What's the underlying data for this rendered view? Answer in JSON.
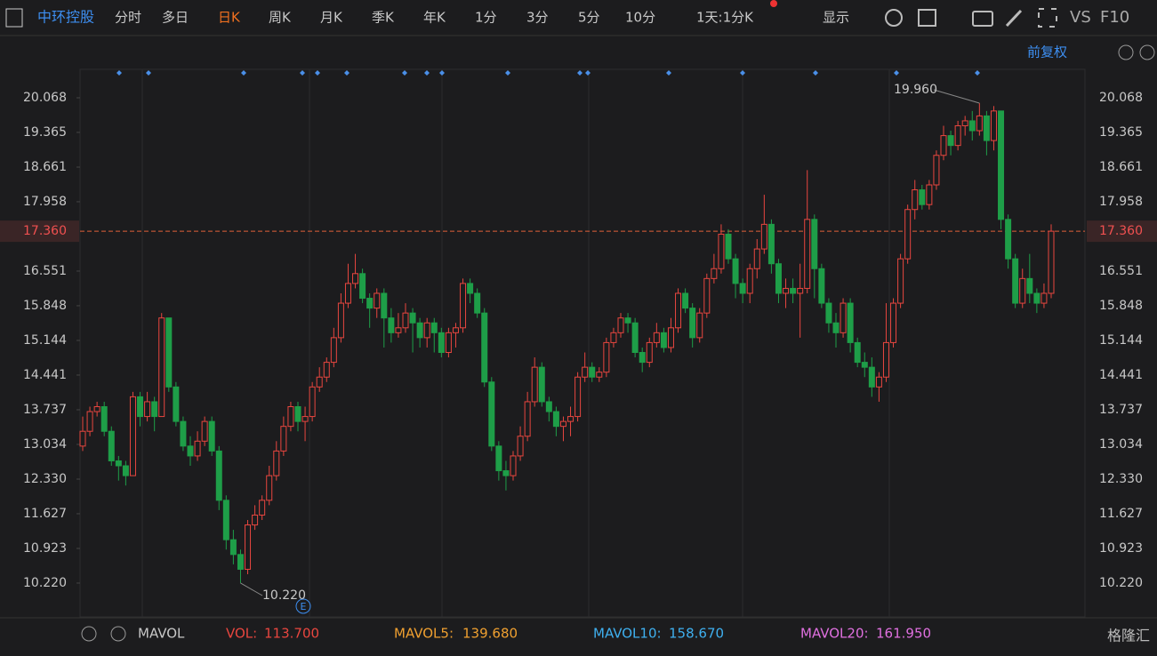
{
  "toolbar": {
    "stock": "中环控股",
    "tabs": [
      "分时",
      "多日",
      "日K",
      "周K",
      "月K",
      "季K",
      "年K",
      "1分",
      "3分",
      "5分",
      "10分"
    ],
    "period": "1天:1分K",
    "display": "显示",
    "vs": "VS",
    "f10": "F10"
  },
  "adjust": "前复权",
  "chart_data": {
    "type": "candlestick",
    "ylim": [
      9.534,
      20.645
    ],
    "yticks": [
      20.068,
      19.365,
      18.661,
      17.958,
      16.551,
      15.848,
      15.144,
      14.441,
      13.737,
      13.034,
      {
        "value": 12.33,
        "label": "12.330"
      },
      11.627,
      10.923,
      {
        "value": 10.22,
        "label": "10.220"
      }
    ],
    "last_price": {
      "value": 17.36,
      "label": "17.360"
    },
    "max_label": {
      "index": 125,
      "value": 19.96,
      "label": "19.960"
    },
    "min_label": {
      "index": 22,
      "value": 10.22,
      "label": "10.220"
    },
    "up_color": "#e8463f",
    "down_color": "#1e9e48",
    "open": [
      13.0,
      13.3,
      13.7,
      13.8,
      13.3,
      12.7,
      12.6,
      12.4,
      14.0,
      13.6,
      13.9,
      13.6,
      15.6,
      14.2,
      13.5,
      13.0,
      12.8,
      13.1,
      13.5,
      12.9,
      11.9,
      11.1,
      10.8,
      10.5,
      11.4,
      11.6,
      11.9,
      12.4,
      12.9,
      13.4,
      13.8,
      13.5,
      13.6,
      14.2,
      14.4,
      14.7,
      15.2,
      15.9,
      16.3,
      16.5,
      16.0,
      15.8,
      16.1,
      15.6,
      15.3,
      15.4,
      15.7,
      15.5,
      15.2,
      15.5,
      15.3,
      14.9,
      15.3,
      15.4,
      16.3,
      16.1,
      15.7,
      14.3,
      13.0,
      12.5,
      12.4,
      12.8,
      13.2,
      13.9,
      14.6,
      13.9,
      13.7,
      13.4,
      13.5,
      13.6,
      14.4,
      14.6,
      14.4,
      14.5,
      15.1,
      15.3,
      15.6,
      15.5,
      14.9,
      14.7,
      15.1,
      15.3,
      15.0,
      15.4,
      16.1,
      15.8,
      15.2,
      15.7,
      16.4,
      16.6,
      17.3,
      16.8,
      16.3,
      16.1,
      16.6,
      17.0,
      17.5,
      16.7,
      16.1,
      16.2,
      16.1,
      16.2,
      17.6,
      16.6,
      15.9,
      15.5,
      15.3,
      15.9,
      15.1,
      14.7,
      14.6,
      14.2,
      14.4,
      15.1,
      15.9,
      16.8,
      17.8,
      18.2,
      17.9,
      18.3,
      18.9,
      19.3,
      19.1,
      19.5,
      19.6,
      19.4,
      19.7,
      19.2,
      19.8,
      17.6,
      16.8,
      15.9,
      16.4,
      16.1,
      15.9,
      16.1
    ],
    "high": [
      13.6,
      13.8,
      13.9,
      13.9,
      13.4,
      12.8,
      12.7,
      14.1,
      14.1,
      14.1,
      14.0,
      15.7,
      15.6,
      14.3,
      13.6,
      13.2,
      13.3,
      13.6,
      13.6,
      13.0,
      12.0,
      11.3,
      10.9,
      11.5,
      11.8,
      12.0,
      12.6,
      13.1,
      13.6,
      13.9,
      13.9,
      13.8,
      14.3,
      14.6,
      14.8,
      15.4,
      16.1,
      16.7,
      16.9,
      16.6,
      16.1,
      16.2,
      16.2,
      15.8,
      15.7,
      15.9,
      15.8,
      15.6,
      15.6,
      15.6,
      15.4,
      15.4,
      15.5,
      16.4,
      16.4,
      16.2,
      15.8,
      14.4,
      13.1,
      12.7,
      12.9,
      13.4,
      14.1,
      14.8,
      14.7,
      14.0,
      13.8,
      13.6,
      13.8,
      14.5,
      14.9,
      14.7,
      14.6,
      15.2,
      15.4,
      15.7,
      15.7,
      15.6,
      15.0,
      15.2,
      15.5,
      15.4,
      15.6,
      16.2,
      16.2,
      15.9,
      15.8,
      16.5,
      16.9,
      17.5,
      17.4,
      16.9,
      16.4,
      16.7,
      17.2,
      18.1,
      17.6,
      16.8,
      16.4,
      16.4,
      16.7,
      18.6,
      17.7,
      16.7,
      16.0,
      15.7,
      16.0,
      16.0,
      15.2,
      14.9,
      14.8,
      14.5,
      15.9,
      16.0,
      16.9,
      17.9,
      18.4,
      18.3,
      18.4,
      19.0,
      19.5,
      19.4,
      19.6,
      19.7,
      19.8,
      19.96,
      19.8,
      19.9,
      19.8,
      17.7,
      16.9,
      16.6,
      16.9,
      16.2,
      16.3,
      17.5
    ],
    "low": [
      12.9,
      13.2,
      13.6,
      13.2,
      12.6,
      12.3,
      12.2,
      12.4,
      13.4,
      13.5,
      13.3,
      13.6,
      14.1,
      13.4,
      12.9,
      12.6,
      12.7,
      13.0,
      12.8,
      11.7,
      10.9,
      10.6,
      10.22,
      10.4,
      11.3,
      11.5,
      11.8,
      12.3,
      12.8,
      13.3,
      13.3,
      13.1,
      13.5,
      14.1,
      14.3,
      14.6,
      15.1,
      15.8,
      16.2,
      15.9,
      15.4,
      15.6,
      15.0,
      15.1,
      15.2,
      15.3,
      14.9,
      15.0,
      15.0,
      14.9,
      14.8,
      14.8,
      15.0,
      15.3,
      15.9,
      15.6,
      14.2,
      12.9,
      12.3,
      12.1,
      12.3,
      12.7,
      13.1,
      13.8,
      13.8,
      13.5,
      13.2,
      13.1,
      13.2,
      13.5,
      14.3,
      14.3,
      14.3,
      14.4,
      15.0,
      15.2,
      15.3,
      14.8,
      14.5,
      14.6,
      15.0,
      14.9,
      14.9,
      15.3,
      15.7,
      15.0,
      15.1,
      15.6,
      16.3,
      16.5,
      16.7,
      16.0,
      15.9,
      15.9,
      16.4,
      16.9,
      16.5,
      15.9,
      15.8,
      15.9,
      15.2,
      16.1,
      16.0,
      15.8,
      15.3,
      15.0,
      15.2,
      14.9,
      14.6,
      14.4,
      14.0,
      13.9,
      14.3,
      15.0,
      15.8,
      16.7,
      17.6,
      17.8,
      17.8,
      18.2,
      18.8,
      18.9,
      19.0,
      19.3,
      19.2,
      19.3,
      18.9,
      19.0,
      17.4,
      16.6,
      15.8,
      15.8,
      15.9,
      15.7,
      15.8,
      16.0
    ],
    "close": [
      13.3,
      13.7,
      13.8,
      13.3,
      12.7,
      12.6,
      12.4,
      14.0,
      13.6,
      13.9,
      13.6,
      15.6,
      14.2,
      13.5,
      13.0,
      12.8,
      13.1,
      13.5,
      12.9,
      11.9,
      11.1,
      10.8,
      10.5,
      11.4,
      11.6,
      11.9,
      12.4,
      12.9,
      13.4,
      13.8,
      13.5,
      13.6,
      14.2,
      14.4,
      14.7,
      15.2,
      15.9,
      16.3,
      16.5,
      16.0,
      15.8,
      16.1,
      15.6,
      15.3,
      15.4,
      15.7,
      15.5,
      15.2,
      15.5,
      15.3,
      14.9,
      15.3,
      15.4,
      16.3,
      16.1,
      15.7,
      14.3,
      13.0,
      12.5,
      12.4,
      12.8,
      13.2,
      13.9,
      14.6,
      13.9,
      13.7,
      13.4,
      13.5,
      13.6,
      14.4,
      14.6,
      14.4,
      14.5,
      15.1,
      15.3,
      15.6,
      15.5,
      14.9,
      14.7,
      15.1,
      15.3,
      15.0,
      15.4,
      16.1,
      15.8,
      15.2,
      15.7,
      16.4,
      16.6,
      17.3,
      16.8,
      16.3,
      16.1,
      16.6,
      17.0,
      17.5,
      16.7,
      16.1,
      16.2,
      16.1,
      16.2,
      17.6,
      16.6,
      15.9,
      15.5,
      15.3,
      15.9,
      15.1,
      14.7,
      14.6,
      14.2,
      14.4,
      15.1,
      15.9,
      16.8,
      17.8,
      18.2,
      17.9,
      18.3,
      18.9,
      19.3,
      19.1,
      19.5,
      19.6,
      19.4,
      19.7,
      19.2,
      19.8,
      17.6,
      16.8,
      15.9,
      16.4,
      16.1,
      15.9,
      16.1,
      17.36
    ]
  },
  "volume_bar": {
    "indicator": "MAVOL",
    "vol_label": "VOL:",
    "vol": "113.700",
    "ma5_label": "MAVOL5:",
    "ma5": "139.680",
    "ma10_label": "MAVOL10:",
    "ma10": "158.670",
    "ma20_label": "MAVOL20:",
    "ma20": "161.950"
  },
  "event_marker": "E",
  "watermark": "格隆汇"
}
